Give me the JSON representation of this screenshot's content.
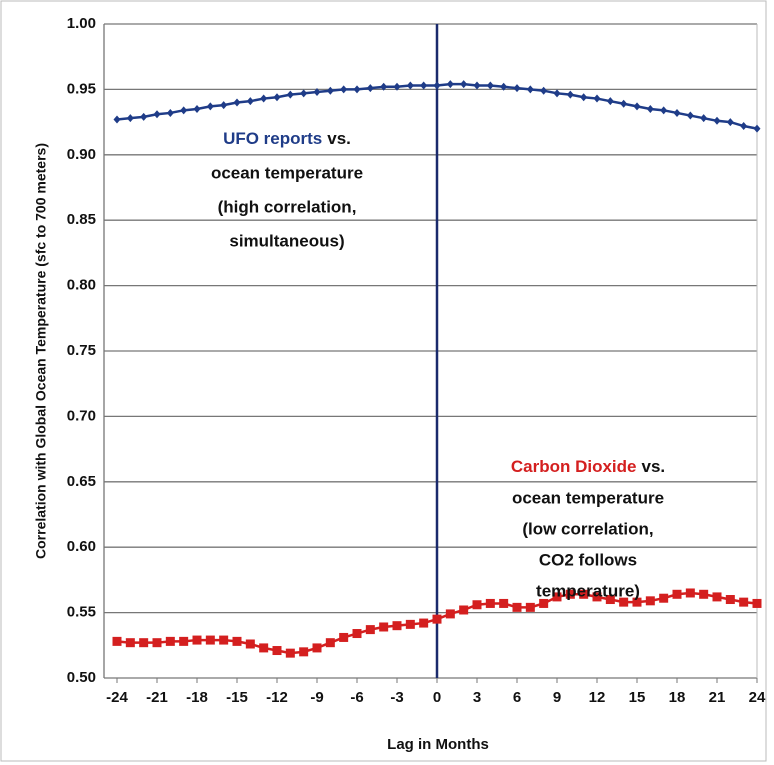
{
  "chart_data": {
    "type": "line",
    "y_label": "Correlation with Global Ocean Temperature (sfc to 700 meters)",
    "x_label": "Lag in Months",
    "x": [
      -24,
      -23,
      -22,
      -21,
      -20,
      -19,
      -18,
      -17,
      -16,
      -15,
      -14,
      -13,
      -12,
      -11,
      -10,
      -9,
      -8,
      -7,
      -6,
      -5,
      -4,
      -3,
      -2,
      -1,
      0,
      1,
      2,
      3,
      4,
      5,
      6,
      7,
      8,
      9,
      10,
      11,
      12,
      13,
      14,
      15,
      16,
      17,
      18,
      19,
      20,
      21,
      22,
      23,
      24
    ],
    "series": [
      {
        "name": "UFO reports",
        "color": "#1f3c88",
        "marker": "diamond",
        "values": [
          0.927,
          0.928,
          0.929,
          0.931,
          0.932,
          0.934,
          0.935,
          0.937,
          0.938,
          0.94,
          0.941,
          0.943,
          0.944,
          0.946,
          0.947,
          0.948,
          0.949,
          0.95,
          0.95,
          0.951,
          0.952,
          0.952,
          0.953,
          0.953,
          0.953,
          0.954,
          0.954,
          0.953,
          0.953,
          0.952,
          0.951,
          0.95,
          0.949,
          0.947,
          0.946,
          0.944,
          0.943,
          0.941,
          0.939,
          0.937,
          0.935,
          0.934,
          0.932,
          0.93,
          0.928,
          0.926,
          0.925,
          0.922,
          0.92
        ]
      },
      {
        "name": "Carbon Dioxide",
        "color": "#d41f1f",
        "marker": "square",
        "values": [
          0.528,
          0.527,
          0.527,
          0.527,
          0.528,
          0.528,
          0.529,
          0.529,
          0.529,
          0.528,
          0.526,
          0.523,
          0.521,
          0.519,
          0.52,
          0.523,
          0.527,
          0.531,
          0.534,
          0.537,
          0.539,
          0.54,
          0.541,
          0.542,
          0.545,
          0.549,
          0.552,
          0.556,
          0.557,
          0.557,
          0.554,
          0.554,
          0.557,
          0.562,
          0.564,
          0.564,
          0.562,
          0.56,
          0.558,
          0.558,
          0.559,
          0.561,
          0.564,
          0.565,
          0.564,
          0.562,
          0.56,
          0.558,
          0.557
        ]
      }
    ],
    "annotations": [
      {
        "highlight": "UFO reports",
        "rest": "vs.",
        "lines": [
          "ocean temperature",
          "(high correlation,",
          "simultaneous)"
        ]
      },
      {
        "highlight": "Carbon Dioxide",
        "rest": "vs.",
        "lines": [
          "ocean temperature",
          "(low correlation,",
          "CO2 follows",
          "temperature)"
        ]
      }
    ],
    "vline": 0,
    "vline_color": "#1a2a6c",
    "xlim": [
      -24,
      24
    ],
    "xticks": [
      -24,
      -21,
      -18,
      -15,
      -12,
      -9,
      -6,
      -3,
      0,
      3,
      6,
      9,
      12,
      15,
      18,
      21,
      24
    ],
    "ylim": [
      0.5,
      1.0
    ],
    "yticks": [
      {
        "value": 0.5,
        "label": "0.50"
      },
      {
        "value": 0.55,
        "label": "0.55"
      },
      {
        "value": 0.6,
        "label": "0.60"
      },
      {
        "value": 0.65,
        "label": "0.65"
      },
      {
        "value": 0.7,
        "label": "0.70"
      },
      {
        "value": 0.75,
        "label": "0.75"
      },
      {
        "value": 0.8,
        "label": "0.80"
      },
      {
        "value": 0.85,
        "label": "0.85"
      },
      {
        "value": 0.9,
        "label": "0.90"
      },
      {
        "value": 0.95,
        "label": "0.95"
      },
      {
        "value": 1.0,
        "label": "1.00"
      }
    ],
    "grid": true
  }
}
